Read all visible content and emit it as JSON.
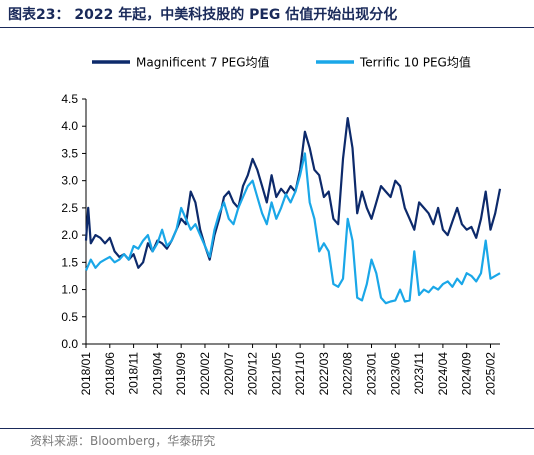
{
  "header": {
    "title": "图表23： 2022 年起，中美科技股的 PEG 估值开始出现分化"
  },
  "footer": {
    "source": "资料来源：Bloomberg，华泰研究"
  },
  "colors": {
    "magnificent": "#0d2a6b",
    "terrific": "#1aa7e8",
    "rule": "#1a2a5a"
  },
  "chart_data": {
    "type": "line",
    "title": "",
    "xlabel": "",
    "ylabel": "",
    "ylim": [
      0,
      4.5
    ],
    "yticks": [
      "0.0",
      "0.5",
      "1.0",
      "1.5",
      "2.0",
      "2.5",
      "3.0",
      "3.5",
      "4.0",
      "4.5"
    ],
    "xlim": [
      "2018-01",
      "2025-04"
    ],
    "xticks": [
      "2018/01",
      "2018/06",
      "2018/11",
      "2019/04",
      "2019/09",
      "2020/02",
      "2020/07",
      "2020/12",
      "2021/05",
      "2021/10",
      "2022/03",
      "2022/08",
      "2023/01",
      "2023/06",
      "2023/11",
      "2024/04",
      "2024/09",
      "2025/02"
    ],
    "legend": "top",
    "grid": false,
    "series": [
      {
        "name": "Magnificent 7 PEG均值",
        "points": [
          [
            "2018-01",
            1.9
          ],
          [
            "2018-01-15",
            2.5
          ],
          [
            "2018-02",
            1.85
          ],
          [
            "2018-03",
            2.0
          ],
          [
            "2018-04",
            1.95
          ],
          [
            "2018-05",
            1.85
          ],
          [
            "2018-06",
            1.95
          ],
          [
            "2018-07",
            1.7
          ],
          [
            "2018-08",
            1.6
          ],
          [
            "2018-09",
            1.65
          ],
          [
            "2018-10",
            1.55
          ],
          [
            "2018-11",
            1.65
          ],
          [
            "2018-12",
            1.4
          ],
          [
            "2019-01",
            1.5
          ],
          [
            "2019-02",
            1.85
          ],
          [
            "2019-03",
            1.7
          ],
          [
            "2019-04",
            1.9
          ],
          [
            "2019-05",
            1.85
          ],
          [
            "2019-06",
            1.75
          ],
          [
            "2019-07",
            1.9
          ],
          [
            "2019-08",
            2.1
          ],
          [
            "2019-09",
            2.3
          ],
          [
            "2019-10",
            2.2
          ],
          [
            "2019-11",
            2.8
          ],
          [
            "2019-12",
            2.6
          ],
          [
            "2020-01",
            2.1
          ],
          [
            "2020-02",
            1.8
          ],
          [
            "2020-03",
            1.55
          ],
          [
            "2020-04",
            2.0
          ],
          [
            "2020-05",
            2.3
          ],
          [
            "2020-06",
            2.7
          ],
          [
            "2020-07",
            2.8
          ],
          [
            "2020-08",
            2.6
          ],
          [
            "2020-09",
            2.5
          ],
          [
            "2020-10",
            2.9
          ],
          [
            "2020-11",
            3.1
          ],
          [
            "2020-12",
            3.4
          ],
          [
            "2021-01",
            3.2
          ],
          [
            "2021-02",
            2.9
          ],
          [
            "2021-03",
            2.6
          ],
          [
            "2021-04",
            3.1
          ],
          [
            "2021-05",
            2.7
          ],
          [
            "2021-06",
            2.85
          ],
          [
            "2021-07",
            2.75
          ],
          [
            "2021-08",
            2.9
          ],
          [
            "2021-09",
            2.8
          ],
          [
            "2021-10",
            3.2
          ],
          [
            "2021-11",
            3.9
          ],
          [
            "2021-12",
            3.6
          ],
          [
            "2022-01",
            3.2
          ],
          [
            "2022-02",
            3.1
          ],
          [
            "2022-03",
            2.7
          ],
          [
            "2022-04",
            2.8
          ],
          [
            "2022-05",
            2.3
          ],
          [
            "2022-06",
            2.2
          ],
          [
            "2022-07",
            3.4
          ],
          [
            "2022-08",
            4.15
          ],
          [
            "2022-09",
            3.6
          ],
          [
            "2022-10",
            2.4
          ],
          [
            "2022-11",
            2.8
          ],
          [
            "2022-12",
            2.5
          ],
          [
            "2023-01",
            2.3
          ],
          [
            "2023-02",
            2.6
          ],
          [
            "2023-03",
            2.9
          ],
          [
            "2023-04",
            2.8
          ],
          [
            "2023-05",
            2.7
          ],
          [
            "2023-06",
            3.0
          ],
          [
            "2023-07",
            2.9
          ],
          [
            "2023-08",
            2.5
          ],
          [
            "2023-09",
            2.3
          ],
          [
            "2023-10",
            2.1
          ],
          [
            "2023-11",
            2.6
          ],
          [
            "2023-12",
            2.5
          ],
          [
            "2024-01",
            2.4
          ],
          [
            "2024-02",
            2.2
          ],
          [
            "2024-03",
            2.5
          ],
          [
            "2024-04",
            2.1
          ],
          [
            "2024-05",
            2.0
          ],
          [
            "2024-06",
            2.25
          ],
          [
            "2024-07",
            2.5
          ],
          [
            "2024-08",
            2.2
          ],
          [
            "2024-09",
            2.1
          ],
          [
            "2024-10",
            2.15
          ],
          [
            "2024-11",
            1.95
          ],
          [
            "2024-12",
            2.3
          ],
          [
            "2025-01",
            2.8
          ],
          [
            "2025-02",
            2.1
          ],
          [
            "2025-03",
            2.4
          ],
          [
            "2025-04",
            2.85
          ]
        ]
      },
      {
        "name": "Terrific 10 PEG均值",
        "points": [
          [
            "2018-01",
            1.35
          ],
          [
            "2018-02",
            1.55
          ],
          [
            "2018-03",
            1.4
          ],
          [
            "2018-04",
            1.5
          ],
          [
            "2018-05",
            1.55
          ],
          [
            "2018-06",
            1.6
          ],
          [
            "2018-07",
            1.5
          ],
          [
            "2018-08",
            1.55
          ],
          [
            "2018-09",
            1.65
          ],
          [
            "2018-10",
            1.55
          ],
          [
            "2018-11",
            1.8
          ],
          [
            "2018-12",
            1.75
          ],
          [
            "2019-01",
            1.9
          ],
          [
            "2019-02",
            2.0
          ],
          [
            "2019-03",
            1.7
          ],
          [
            "2019-04",
            1.85
          ],
          [
            "2019-05",
            2.1
          ],
          [
            "2019-06",
            1.8
          ],
          [
            "2019-07",
            1.9
          ],
          [
            "2019-08",
            2.1
          ],
          [
            "2019-09",
            2.5
          ],
          [
            "2019-10",
            2.3
          ],
          [
            "2019-11",
            2.1
          ],
          [
            "2019-12",
            2.2
          ],
          [
            "2020-01",
            2.0
          ],
          [
            "2020-02",
            1.8
          ],
          [
            "2020-03",
            1.6
          ],
          [
            "2020-04",
            2.1
          ],
          [
            "2020-05",
            2.4
          ],
          [
            "2020-06",
            2.6
          ],
          [
            "2020-07",
            2.3
          ],
          [
            "2020-08",
            2.2
          ],
          [
            "2020-09",
            2.5
          ],
          [
            "2020-10",
            2.7
          ],
          [
            "2020-11",
            2.9
          ],
          [
            "2020-12",
            3.0
          ],
          [
            "2021-01",
            2.7
          ],
          [
            "2021-02",
            2.4
          ],
          [
            "2021-03",
            2.2
          ],
          [
            "2021-04",
            2.6
          ],
          [
            "2021-05",
            2.3
          ],
          [
            "2021-06",
            2.5
          ],
          [
            "2021-07",
            2.75
          ],
          [
            "2021-08",
            2.6
          ],
          [
            "2021-09",
            2.8
          ],
          [
            "2021-10",
            3.1
          ],
          [
            "2021-11",
            3.5
          ],
          [
            "2021-12",
            2.6
          ],
          [
            "2022-01",
            2.3
          ],
          [
            "2022-02",
            1.7
          ],
          [
            "2022-03",
            1.85
          ],
          [
            "2022-04",
            1.7
          ],
          [
            "2022-05",
            1.1
          ],
          [
            "2022-06",
            1.05
          ],
          [
            "2022-07",
            1.2
          ],
          [
            "2022-08",
            2.3
          ],
          [
            "2022-09",
            1.9
          ],
          [
            "2022-10",
            0.85
          ],
          [
            "2022-11",
            0.8
          ],
          [
            "2022-12",
            1.1
          ],
          [
            "2023-01",
            1.55
          ],
          [
            "2023-02",
            1.3
          ],
          [
            "2023-03",
            0.85
          ],
          [
            "2023-04",
            0.75
          ],
          [
            "2023-05",
            0.78
          ],
          [
            "2023-06",
            0.8
          ],
          [
            "2023-07",
            1.0
          ],
          [
            "2023-08",
            0.78
          ],
          [
            "2023-09",
            0.8
          ],
          [
            "2023-10",
            1.7
          ],
          [
            "2023-11",
            0.9
          ],
          [
            "2023-12",
            1.0
          ],
          [
            "2024-01",
            0.95
          ],
          [
            "2024-02",
            1.05
          ],
          [
            "2024-03",
            1.0
          ],
          [
            "2024-04",
            1.1
          ],
          [
            "2024-05",
            1.15
          ],
          [
            "2024-06",
            1.05
          ],
          [
            "2024-07",
            1.2
          ],
          [
            "2024-08",
            1.1
          ],
          [
            "2024-09",
            1.3
          ],
          [
            "2024-10",
            1.25
          ],
          [
            "2024-11",
            1.15
          ],
          [
            "2024-12",
            1.3
          ],
          [
            "2025-01",
            1.9
          ],
          [
            "2025-02",
            1.2
          ],
          [
            "2025-03",
            1.25
          ],
          [
            "2025-04",
            1.3
          ]
        ]
      }
    ]
  }
}
